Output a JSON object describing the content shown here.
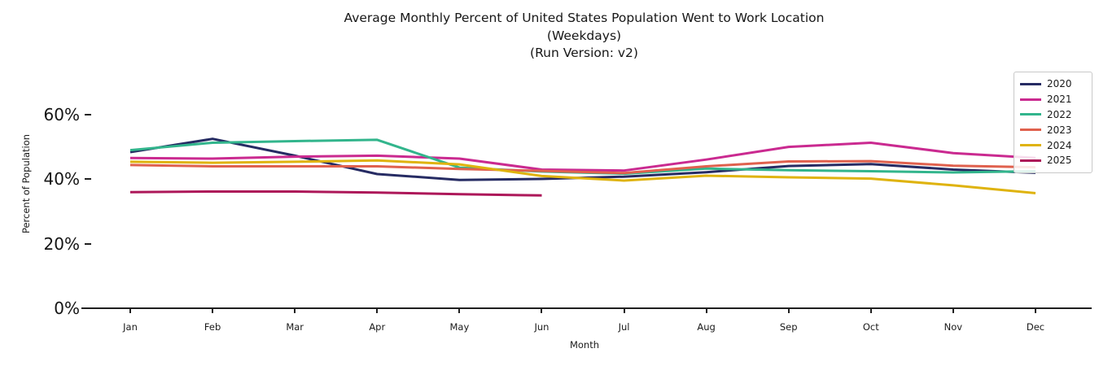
{
  "title": {
    "line1": "Average Monthly Percent of United States Population Went to Work Location",
    "line2": "(Weekdays)",
    "line3": "(Run Version: v2)"
  },
  "axes": {
    "x_label": "Month",
    "y_label": "Percent of Population",
    "x_ticks": [
      "Jan",
      "Feb",
      "Mar",
      "Apr",
      "May",
      "Jun",
      "Jul",
      "Aug",
      "Sep",
      "Oct",
      "Nov",
      "Dec"
    ],
    "y_ticks": [
      "60%",
      "40%",
      "20%",
      "0%"
    ]
  },
  "chart_data": {
    "type": "line",
    "title": "Average Monthly Percent of United States Population Went to Work Location (Weekdays) (Run Version: v2)",
    "xlabel": "Month",
    "ylabel": "Percent of Population",
    "categories": [
      "Jan",
      "Feb",
      "Mar",
      "Apr",
      "May",
      "Jun",
      "Jul",
      "Aug",
      "Sep",
      "Oct",
      "Nov",
      "Dec"
    ],
    "ylim": [
      0,
      74
    ],
    "y_tick_percents": [
      60,
      40,
      20,
      0
    ],
    "grid": false,
    "legend_position": "upper right",
    "series": [
      {
        "name": "2020",
        "color": "#262b63",
        "values": [
          48.3,
          52.4,
          47.2,
          41.5,
          39.7,
          40.0,
          40.7,
          42.1,
          44.0,
          44.6,
          42.9,
          41.9
        ]
      },
      {
        "name": "2021",
        "color": "#ca2a90",
        "values": [
          46.5,
          46.3,
          46.9,
          47.2,
          46.3,
          42.9,
          42.6,
          46.0,
          49.9,
          51.2,
          48.0,
          46.5
        ]
      },
      {
        "name": "2022",
        "color": "#32b58c",
        "values": [
          48.9,
          51.2,
          51.7,
          52.1,
          43.5,
          42.3,
          41.6,
          43.2,
          42.7,
          42.4,
          42.0,
          42.4
        ]
      },
      {
        "name": "2023",
        "color": "#e0614e",
        "values": [
          44.3,
          43.9,
          43.9,
          43.9,
          43.1,
          42.5,
          41.8,
          43.9,
          45.4,
          45.5,
          44.1,
          43.6
        ]
      },
      {
        "name": "2024",
        "color": "#dfb30e",
        "values": [
          45.3,
          45.0,
          45.3,
          45.7,
          44.5,
          40.9,
          39.5,
          41.0,
          40.5,
          40.1,
          38.0,
          35.6
        ]
      },
      {
        "name": "2025",
        "color": "#ad1759",
        "values": [
          35.9,
          36.1,
          36.1,
          35.8,
          35.3,
          34.9,
          null,
          null,
          null,
          null,
          null,
          null
        ]
      }
    ]
  }
}
